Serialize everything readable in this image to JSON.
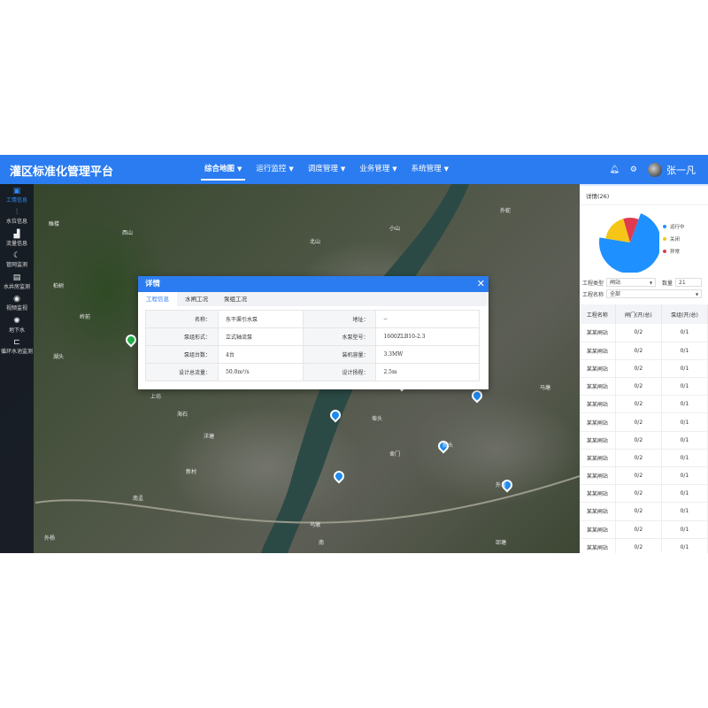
{
  "header": {
    "title": "灌区标准化管理平台",
    "nav": [
      {
        "label": "综合地图",
        "active": true
      },
      {
        "label": "运行监控"
      },
      {
        "label": "调度管理"
      },
      {
        "label": "业务管理"
      },
      {
        "label": "系统管理"
      }
    ],
    "bell_icon": "bell-icon",
    "settings_icon": "gear-icon",
    "user": "张一凡"
  },
  "sidebar": [
    {
      "label": "工情信息",
      "icon": "▣",
      "active": true
    },
    {
      "label": "水位信息",
      "icon": "⫶"
    },
    {
      "label": "流量信息",
      "icon": "▟"
    },
    {
      "label": "管网监测",
      "icon": "☾"
    },
    {
      "label": "水井房监测",
      "icon": "▤"
    },
    {
      "label": "视频监视",
      "icon": "◉"
    },
    {
      "label": "地下水",
      "icon": "✺"
    },
    {
      "label": "循环水池监测",
      "icon": "⊏"
    }
  ],
  "map_labels": [
    "睢楼",
    "西山",
    "柏树",
    "岭前",
    "上坊",
    "海石",
    "龙",
    "小山",
    "北山",
    "湖头",
    "外蛇",
    "新村",
    "马塘",
    "埠头",
    "外坂",
    "舍门",
    "新头",
    "乌墩",
    "南孟",
    "外杨",
    "南",
    "洋塘",
    "邱塘"
  ],
  "dialog": {
    "title": "详情",
    "close_icon": "close-icon",
    "tabs": [
      "工程信息",
      "水闸工况",
      "泵组工况"
    ],
    "active_tab": 0,
    "rows": [
      [
        "名称：",
        "东干渠引水泵",
        "地址：",
        "--"
      ],
      [
        "泵组形式：",
        "立式轴流泵",
        "水泵型号：",
        "1600ZLB10-2.3"
      ],
      [
        "泵组台数：",
        "4台",
        "装机容量：",
        "3.3MW"
      ],
      [
        "设计总流量：",
        "50.0m³/s",
        "设计扬程：",
        "2.5m"
      ]
    ]
  },
  "panel": {
    "title": "详情(26)",
    "chart_data": {
      "type": "pie",
      "slices": [
        {
          "name": "运行中",
          "value": 72,
          "color": "#1e90ff"
        },
        {
          "name": "关闭",
          "value": 18,
          "color": "#f5c518"
        },
        {
          "name": "异常",
          "value": 10,
          "color": "#e03a4e"
        }
      ]
    },
    "filters": {
      "type_label": "工程类型",
      "type_value": "闸站",
      "count_label": "数量",
      "count_value": "21",
      "name_label": "工程名称",
      "name_value": "全部"
    },
    "table": {
      "headers": [
        "工程名称",
        "闸门(开/总)",
        "泵组(开/总)"
      ],
      "rows": [
        [
          "某某闸站",
          "0/2",
          "0/1"
        ],
        [
          "某某闸站",
          "0/2",
          "0/1"
        ],
        [
          "某某闸站",
          "0/2",
          "0/1"
        ],
        [
          "某某闸站",
          "0/2",
          "0/1"
        ],
        [
          "某某闸站",
          "0/2",
          "0/1"
        ],
        [
          "某某闸站",
          "0/2",
          "0/1"
        ],
        [
          "某某闸站",
          "0/2",
          "0/1"
        ],
        [
          "某某闸站",
          "0/2",
          "0/1"
        ],
        [
          "某某闸站",
          "0/2",
          "0/1"
        ],
        [
          "某某闸站",
          "0/2",
          "0/1"
        ],
        [
          "某某闸站",
          "0/2",
          "0/1"
        ],
        [
          "某某闸站",
          "0/2",
          "0/1"
        ],
        [
          "某某闸站",
          "0/2",
          "0/1"
        ]
      ]
    }
  }
}
